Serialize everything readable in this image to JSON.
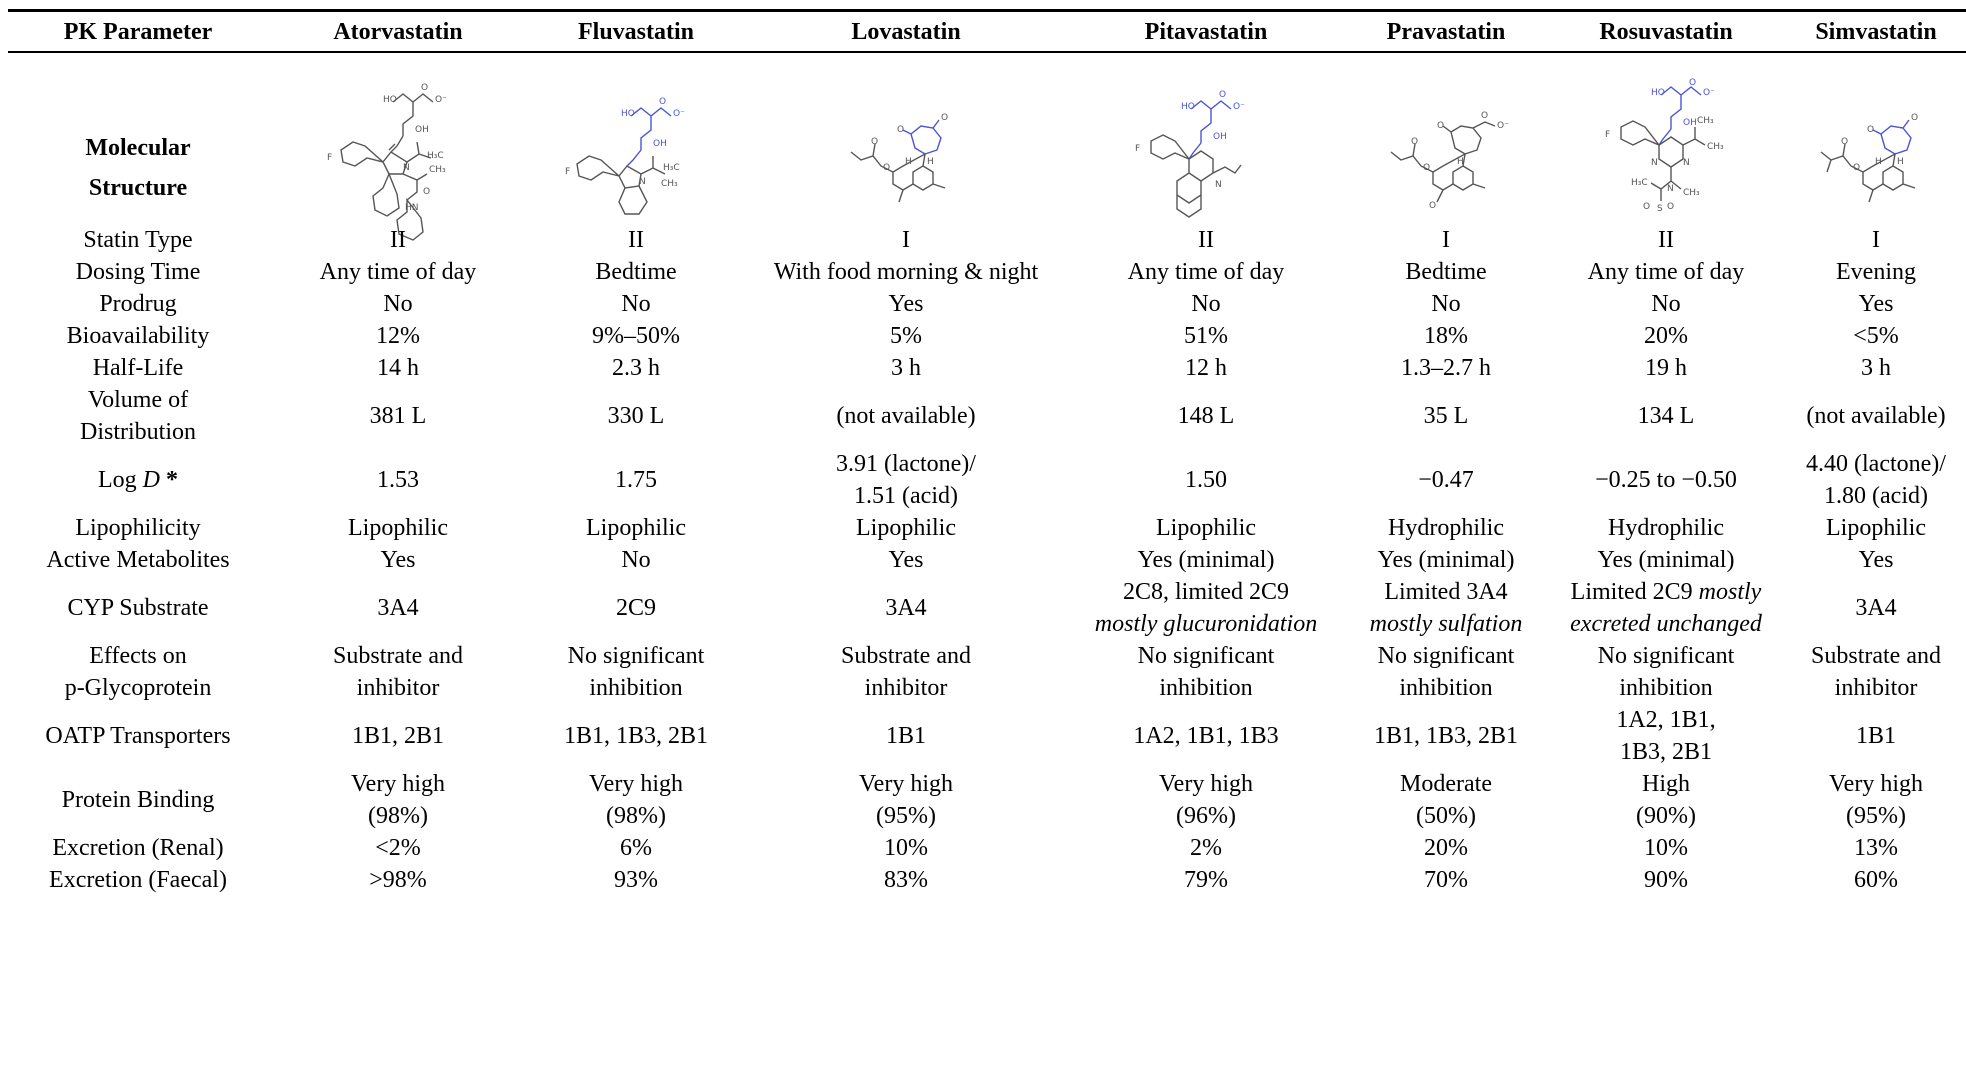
{
  "table": {
    "header": {
      "param": "PK Parameter",
      "drugs": [
        "Atorvastatin",
        "Fluvastatin",
        "Lovastatin",
        "Pitavastatin",
        "Pravastatin",
        "Rosuvastatin",
        "Simvastatin"
      ]
    },
    "structure_label": [
      "Molecular",
      "Structure"
    ],
    "rows": [
      {
        "label": [
          "Statin Type"
        ],
        "values": [
          [
            "II"
          ],
          [
            "II"
          ],
          [
            "I"
          ],
          [
            "II"
          ],
          [
            "I"
          ],
          [
            "II"
          ],
          [
            "I"
          ]
        ]
      },
      {
        "label": [
          "Dosing Time"
        ],
        "values": [
          [
            "Any time of day"
          ],
          [
            "Bedtime"
          ],
          [
            "With food morning & night"
          ],
          [
            "Any time of day"
          ],
          [
            "Bedtime"
          ],
          [
            "Any time of day"
          ],
          [
            "Evening"
          ]
        ]
      },
      {
        "label": [
          "Prodrug"
        ],
        "values": [
          [
            "No"
          ],
          [
            "No"
          ],
          [
            "Yes"
          ],
          [
            "No"
          ],
          [
            "No"
          ],
          [
            "No"
          ],
          [
            "Yes"
          ]
        ]
      },
      {
        "label": [
          "Bioavailability"
        ],
        "values": [
          [
            "12%"
          ],
          [
            "9%–50%"
          ],
          [
            "5%"
          ],
          [
            "51%"
          ],
          [
            "18%"
          ],
          [
            "20%"
          ],
          [
            "<5%"
          ]
        ]
      },
      {
        "label": [
          "Half-Life"
        ],
        "values": [
          [
            "14 h"
          ],
          [
            "2.3 h"
          ],
          [
            "3 h"
          ],
          [
            "12 h"
          ],
          [
            "1.3–2.7 h"
          ],
          [
            "19 h"
          ],
          [
            "3 h"
          ]
        ]
      },
      {
        "label": [
          "Volume of",
          "Distribution"
        ],
        "values": [
          [
            "381 L"
          ],
          [
            "330 L"
          ],
          [
            "(not available)"
          ],
          [
            "148 L"
          ],
          [
            "35 L"
          ],
          [
            "134 L"
          ],
          [
            "(not available)"
          ]
        ]
      },
      {
        "label": [
          "Log D *"
        ],
        "values": [
          [
            "1.53"
          ],
          [
            "1.75"
          ],
          [
            "3.91 (lactone)/",
            "1.51 (acid)"
          ],
          [
            "1.50"
          ],
          [
            "−0.47"
          ],
          [
            "−0.25 to −0.50"
          ],
          [
            "4.40 (lactone)/",
            "1.80 (acid)"
          ]
        ]
      },
      {
        "label": [
          "Lipophilicity"
        ],
        "values": [
          [
            "Lipophilic"
          ],
          [
            "Lipophilic"
          ],
          [
            "Lipophilic"
          ],
          [
            "Lipophilic"
          ],
          [
            "Hydrophilic"
          ],
          [
            "Hydrophilic"
          ],
          [
            "Lipophilic"
          ]
        ]
      },
      {
        "label": [
          "Active Metabolites"
        ],
        "values": [
          [
            "Yes"
          ],
          [
            "No"
          ],
          [
            "Yes"
          ],
          [
            "Yes (minimal)"
          ],
          [
            "Yes (minimal)"
          ],
          [
            "Yes (minimal)"
          ],
          [
            "Yes"
          ]
        ]
      },
      {
        "label": [
          "CYP Substrate"
        ],
        "values": [
          [
            "3A4"
          ],
          [
            "2C9"
          ],
          [
            "3A4"
          ],
          [
            "2C8, limited 2C9",
            "mostly glucuronidation"
          ],
          [
            "Limited 3A4",
            "mostly sulfation"
          ],
          [
            "Limited 2C9 mostly",
            "excreted unchanged"
          ],
          [
            "3A4"
          ]
        ]
      },
      {
        "label": [
          "Effects on",
          "p-Glycoprotein"
        ],
        "values": [
          [
            "Substrate and",
            "inhibitor"
          ],
          [
            "No significant",
            "inhibition"
          ],
          [
            "Substrate and",
            "inhibitor"
          ],
          [
            "No significant",
            "inhibition"
          ],
          [
            "No significant",
            "inhibition"
          ],
          [
            "No significant",
            "inhibition"
          ],
          [
            "Substrate and",
            "inhibitor"
          ]
        ]
      },
      {
        "label": [
          "OATP Transporters"
        ],
        "values": [
          [
            "1B1, 2B1"
          ],
          [
            "1B1, 1B3, 2B1"
          ],
          [
            "1B1"
          ],
          [
            "1A2, 1B1, 1B3"
          ],
          [
            "1B1, 1B3, 2B1"
          ],
          [
            "1A2, 1B1,",
            "1B3, 2B1"
          ],
          [
            "1B1"
          ]
        ]
      },
      {
        "label": [
          "Protein Binding"
        ],
        "values": [
          [
            "Very high",
            "(98%)"
          ],
          [
            "Very high",
            "(98%)"
          ],
          [
            "Very high",
            "(95%)"
          ],
          [
            "Very high",
            "(96%)"
          ],
          [
            "Moderate",
            "(50%)"
          ],
          [
            "High",
            "(90%)"
          ],
          [
            "Very high",
            "(95%)"
          ]
        ]
      },
      {
        "label": [
          "Excretion (Renal)"
        ],
        "values": [
          [
            "<2%"
          ],
          [
            "6%"
          ],
          [
            "10%"
          ],
          [
            "2%"
          ],
          [
            "20%"
          ],
          [
            "10%"
          ],
          [
            "13%"
          ]
        ]
      },
      {
        "label": [
          "Excretion (Faecal)"
        ],
        "values": [
          [
            ">98%"
          ],
          [
            "93%"
          ],
          [
            "83%"
          ],
          [
            "79%"
          ],
          [
            "70%"
          ],
          [
            "90%"
          ],
          [
            "60%"
          ]
        ]
      }
    ],
    "structure_atoms": {
      "atorvastatin": [
        "HO",
        "O",
        "O⁻",
        "OH",
        "F",
        "N",
        "H₃C",
        "CH₃",
        "O",
        "HN"
      ],
      "fluvastatin": [
        "HO",
        "O",
        "O⁻",
        "OH",
        "F",
        "N",
        "H₃C",
        "CH₃"
      ],
      "lovastatin": [
        "O",
        "O",
        "O",
        "O",
        "H",
        "H"
      ],
      "pitavastatin": [
        "HO",
        "O",
        "O⁻",
        "OH",
        "F",
        "N"
      ],
      "pravastatin": [
        "O",
        "O",
        "O",
        "O⁻",
        "O",
        "H",
        "O"
      ],
      "rosuvastatin": [
        "HO",
        "O",
        "O⁻",
        "OH",
        "F",
        "N",
        "N",
        "CH₃",
        "CH₃",
        "N",
        "H₃C",
        "S",
        "O",
        "O",
        "CH₃"
      ],
      "simvastatin": [
        "O",
        "O",
        "O",
        "O",
        "H",
        "H"
      ]
    }
  }
}
